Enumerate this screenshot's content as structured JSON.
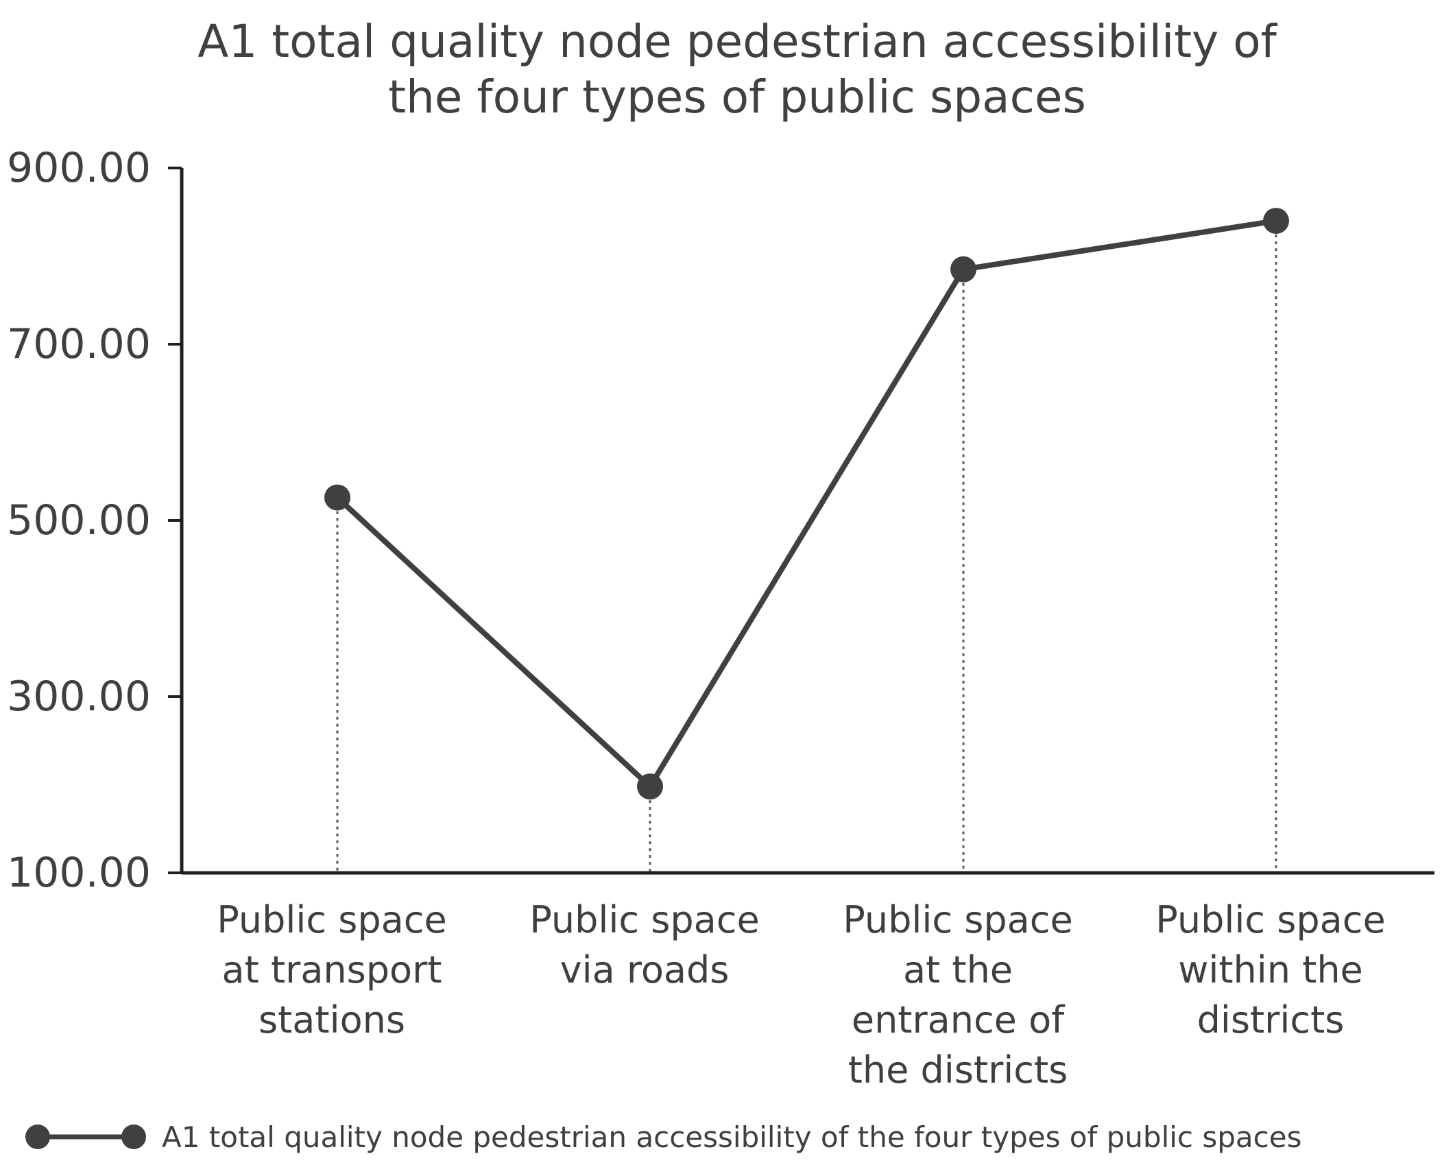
{
  "chart_data": {
    "type": "line",
    "title": "A1 total quality node pedestrian accessibility of the four types of public spaces",
    "title_lines": [
      "A1 total quality node pedestrian accessibility of",
      "the four types of public spaces"
    ],
    "categories": [
      "Public space at transport stations",
      "Public space via roads",
      "Public space at the entrance of the districts",
      "Public space within the districts"
    ],
    "category_label_lines": [
      [
        "Public space",
        "at transport",
        "stations"
      ],
      [
        "Public space",
        "via roads"
      ],
      [
        "Public space",
        "at the",
        "entrance of",
        "the districts"
      ],
      [
        "Public space",
        "within the",
        "districts"
      ]
    ],
    "series": [
      {
        "name": "A1 total quality node pedestrian accessibility of the four types of public spaces",
        "values": [
          526,
          198,
          785,
          840
        ],
        "color": "#404040",
        "marker": "circle"
      }
    ],
    "yticks": [
      "100.00",
      "300.00",
      "500.00",
      "700.00",
      "900.00"
    ],
    "ytick_values": [
      100,
      300,
      500,
      700,
      900
    ],
    "ylim": [
      100,
      900
    ],
    "xlabel": "",
    "ylabel": "",
    "grid": false,
    "drop_lines": true,
    "legend_position": "bottom-left"
  },
  "colors": {
    "series": "#404040",
    "axis": "#1f1f1f",
    "text": "#3f3f3f",
    "background": "#ffffff"
  }
}
